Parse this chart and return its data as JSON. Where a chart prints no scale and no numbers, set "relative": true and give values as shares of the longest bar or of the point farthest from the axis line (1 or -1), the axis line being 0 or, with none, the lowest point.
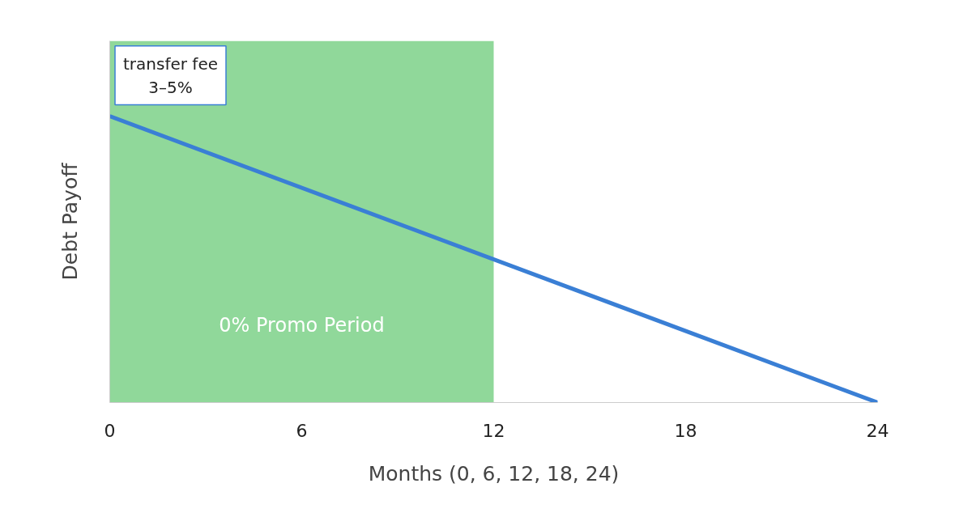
{
  "chart_data": {
    "type": "line",
    "relative": true,
    "xlabel": "Months (0, 6, 12, 18, 24)",
    "ylabel": "Debt Payoff",
    "x": [
      0,
      24
    ],
    "series": [
      {
        "color": "#3a7fd5",
        "values": [
          1,
          0
        ]
      }
    ],
    "xlim": [
      0,
      24
    ],
    "xticks": [
      0,
      6,
      12,
      18,
      24
    ],
    "grid": false,
    "marker": "none",
    "line_style": "solid",
    "bands": [
      {
        "axis": "x",
        "from": 0,
        "to": 12,
        "label": "0% Promo Period",
        "color": "#90d89a"
      }
    ],
    "annotations": [
      {
        "text": "transfer fee\n3–5%",
        "x": 0,
        "y": 1
      }
    ]
  }
}
